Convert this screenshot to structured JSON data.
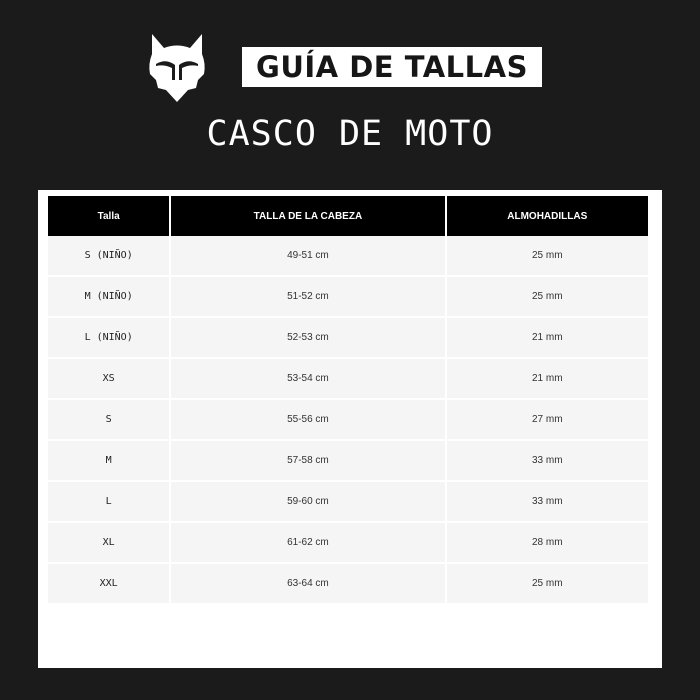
{
  "header": {
    "logo": "fox-head-logo",
    "title": "GUÍA DE TALLAS",
    "subtitle": "CASCO DE MOTO"
  },
  "table": {
    "columns": [
      "Talla",
      "TALLA DE LA CABEZA",
      "ALMOHADILLAS"
    ],
    "rows": [
      [
        "S (NIÑO)",
        "49-51 cm",
        "25 mm"
      ],
      [
        "M (NIÑO)",
        "51-52 cm",
        "25 mm"
      ],
      [
        "L (NIÑO)",
        "52-53 cm",
        "21 mm"
      ],
      [
        "XS",
        "53-54 cm",
        "21 mm"
      ],
      [
        "S",
        "55-56 cm",
        "27 mm"
      ],
      [
        "M",
        "57-58 cm",
        "33 mm"
      ],
      [
        "L",
        "59-60 cm",
        "33 mm"
      ],
      [
        "XL",
        "61-62 cm",
        "28 mm"
      ],
      [
        "XXL",
        "63-64 cm",
        "25 mm"
      ]
    ]
  }
}
